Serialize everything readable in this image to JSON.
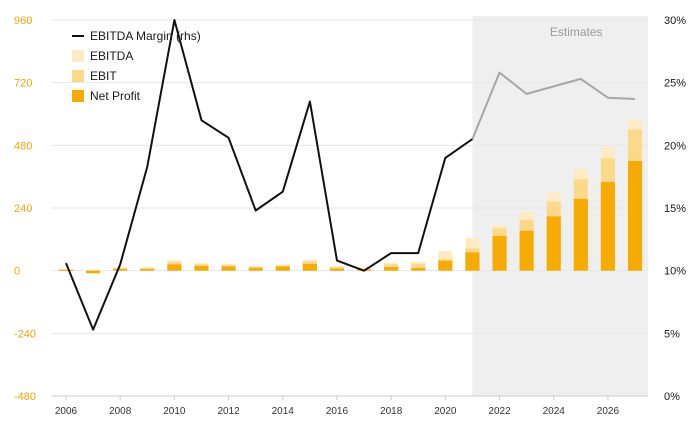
{
  "colors": {
    "ebitda": "#fcebc4",
    "ebit": "#fbd98b",
    "net_profit": "#f5ab00",
    "margin_actual": "#111111",
    "margin_estimate": "#a6a6a6",
    "left_axis_text": "#f0a500",
    "estimates_bg": "#efefef",
    "grid": "#e6e6e6"
  },
  "chart_data": {
    "type": "bar",
    "title": "",
    "estimates_label": "Estimates",
    "estimates_start_year": 2021,
    "x": [
      2006,
      2007,
      2008,
      2009,
      2010,
      2011,
      2012,
      2013,
      2014,
      2015,
      2016,
      2017,
      2018,
      2019,
      2020,
      2021,
      2022,
      2023,
      2024,
      2025,
      2026,
      2027
    ],
    "x_ticks": [
      2006,
      2008,
      2010,
      2012,
      2014,
      2016,
      2018,
      2020,
      2022,
      2024,
      2026
    ],
    "x_tick_labels": [
      "2006",
      "2008",
      "2010",
      "2012",
      "2014",
      "2016",
      "2018",
      "2020",
      "2022",
      "2024",
      "2026"
    ],
    "left_axis": {
      "ylim": [
        -480,
        960
      ],
      "ticks": [
        960,
        720,
        480,
        240,
        0,
        -240,
        -480
      ],
      "tick_labels": [
        "960",
        "720",
        "480",
        "240",
        "0",
        "-240",
        "-480"
      ]
    },
    "right_axis": {
      "ylim": [
        0,
        30
      ],
      "ticks": [
        30,
        25,
        20,
        15,
        10,
        5,
        0
      ],
      "tick_labels": [
        "30%",
        "25%",
        "20%",
        "15%",
        "10%",
        "5%",
        "0%"
      ]
    },
    "series": [
      {
        "name": "EBITDA",
        "kind": "bar",
        "axis": "left",
        "values": [
          8,
          -6,
          14,
          14,
          40,
          30,
          26,
          18,
          24,
          42,
          18,
          12,
          30,
          34,
          75,
          125,
          175,
          225,
          300,
          390,
          475,
          580
        ]
      },
      {
        "name": "EBIT",
        "kind": "bar",
        "axis": "left",
        "values": [
          5,
          -8,
          10,
          10,
          34,
          25,
          22,
          15,
          20,
          36,
          14,
          8,
          24,
          26,
          45,
          85,
          162,
          195,
          265,
          350,
          430,
          540
        ]
      },
      {
        "name": "Net Profit",
        "kind": "bar",
        "axis": "left",
        "values": [
          2,
          -10,
          6,
          6,
          24,
          18,
          16,
          10,
          16,
          26,
          8,
          4,
          14,
          10,
          38,
          70,
          133,
          153,
          208,
          275,
          340,
          420
        ]
      },
      {
        "name": "EBITDA Margin (rhs)",
        "kind": "line",
        "axis": "right",
        "values": [
          10.6,
          5.3,
          10.5,
          18.3,
          30.0,
          22.0,
          20.6,
          14.8,
          16.3,
          23.5,
          10.8,
          10.0,
          11.4,
          11.4,
          19.0,
          20.5,
          25.8,
          24.1,
          24.7,
          25.3,
          23.8,
          23.7
        ]
      }
    ],
    "legend": [
      "EBITDA Margin (rhs)",
      "EBITDA",
      "EBIT",
      "Net Profit"
    ],
    "legend_position": "top-left"
  }
}
